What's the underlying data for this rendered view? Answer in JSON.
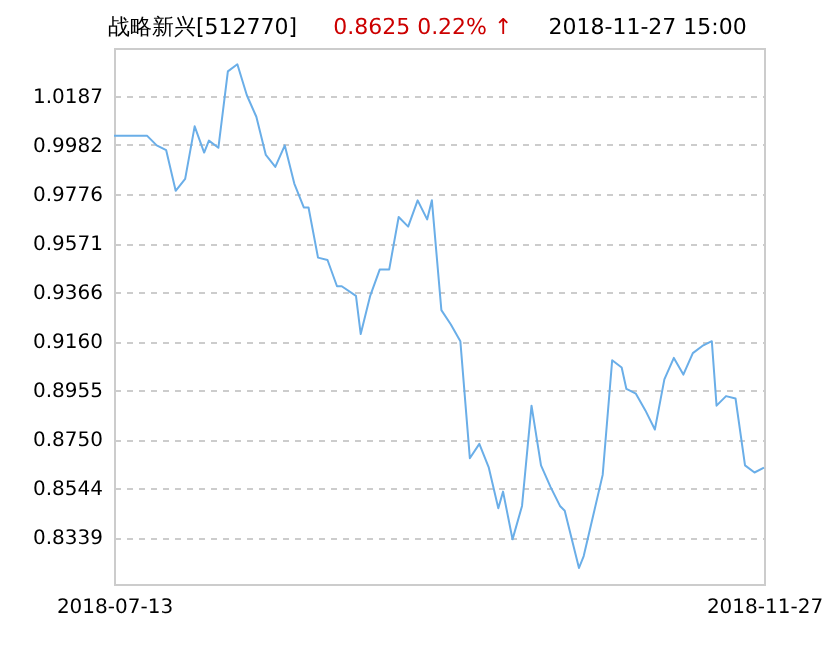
{
  "chart_data": {
    "type": "line",
    "title": "战略新兴[512770]",
    "subtitle": "0.8625  0.22% ↑",
    "annotations": [
      "2018-11-27 15:00"
    ],
    "x": [
      "2018-07-13",
      "2018-07-20",
      "2018-07-22",
      "2018-07-24",
      "2018-07-26",
      "2018-07-28",
      "2018-07-30",
      "2018-08-01",
      "2018-08-02",
      "2018-08-04",
      "2018-08-06",
      "2018-08-08",
      "2018-08-10",
      "2018-08-12",
      "2018-08-14",
      "2018-08-16",
      "2018-08-18",
      "2018-08-20",
      "2018-08-22",
      "2018-08-23",
      "2018-08-25",
      "2018-08-27",
      "2018-08-29",
      "2018-08-30",
      "2018-09-02",
      "2018-09-03",
      "2018-09-05",
      "2018-09-07",
      "2018-09-09",
      "2018-09-11",
      "2018-09-13",
      "2018-09-15",
      "2018-09-17",
      "2018-09-18",
      "2018-09-20",
      "2018-09-22",
      "2018-09-24",
      "2018-09-26",
      "2018-09-28",
      "2018-09-30",
      "2018-10-02",
      "2018-10-03",
      "2018-10-05",
      "2018-10-07",
      "2018-10-09",
      "2018-10-11",
      "2018-10-13",
      "2018-10-15",
      "2018-10-16",
      "2018-10-19",
      "2018-10-20",
      "2018-10-22",
      "2018-10-24",
      "2018-10-26",
      "2018-10-28",
      "2018-10-29",
      "2018-10-31",
      "2018-11-02",
      "2018-11-04",
      "2018-11-06",
      "2018-11-08",
      "2018-11-10",
      "2018-11-12",
      "2018-11-14",
      "2018-11-16",
      "2018-11-17",
      "2018-11-19",
      "2018-11-21",
      "2018-11-23",
      "2018-11-25",
      "2018-11-27"
    ],
    "series": [
      {
        "color": "#6aaee8",
        "values": [
          1.002,
          1.002,
          0.998,
          0.996,
          0.979,
          0.984,
          1.006,
          0.995,
          1.0,
          0.997,
          1.029,
          1.032,
          1.019,
          1.01,
          0.994,
          0.989,
          0.998,
          0.982,
          0.972,
          0.972,
          0.951,
          0.95,
          0.939,
          0.939,
          0.935,
          0.919,
          0.935,
          0.946,
          0.946,
          0.968,
          0.964,
          0.975,
          0.967,
          0.975,
          0.929,
          0.923,
          0.916,
          0.867,
          0.873,
          0.863,
          0.846,
          0.853,
          0.833,
          0.847,
          0.889,
          0.864,
          0.855,
          0.847,
          0.845,
          0.821,
          0.826,
          0.843,
          0.86,
          0.908,
          0.905,
          0.896,
          0.894,
          0.887,
          0.879,
          0.9,
          0.909,
          0.902,
          0.911,
          0.914,
          0.916,
          0.889,
          0.893,
          0.892,
          0.864,
          0.861,
          0.863
        ]
      }
    ],
    "xlim": [
      "2018-07-13",
      "2018-11-27"
    ],
    "xticks": [
      "2018-07-13",
      "2018-11-27"
    ],
    "ylim": [
      0.8143,
      1.0388
    ],
    "yticks": [
      0.8339,
      0.8544,
      {
        "value": 0.875,
        "label": "0.8750"
      },
      0.8955,
      {
        "value": 0.916,
        "label": "0.9160"
      },
      0.9366,
      0.9571,
      0.9776,
      0.9982,
      1.0187
    ],
    "grid": "y",
    "marker": "none",
    "line_style": "solid"
  }
}
